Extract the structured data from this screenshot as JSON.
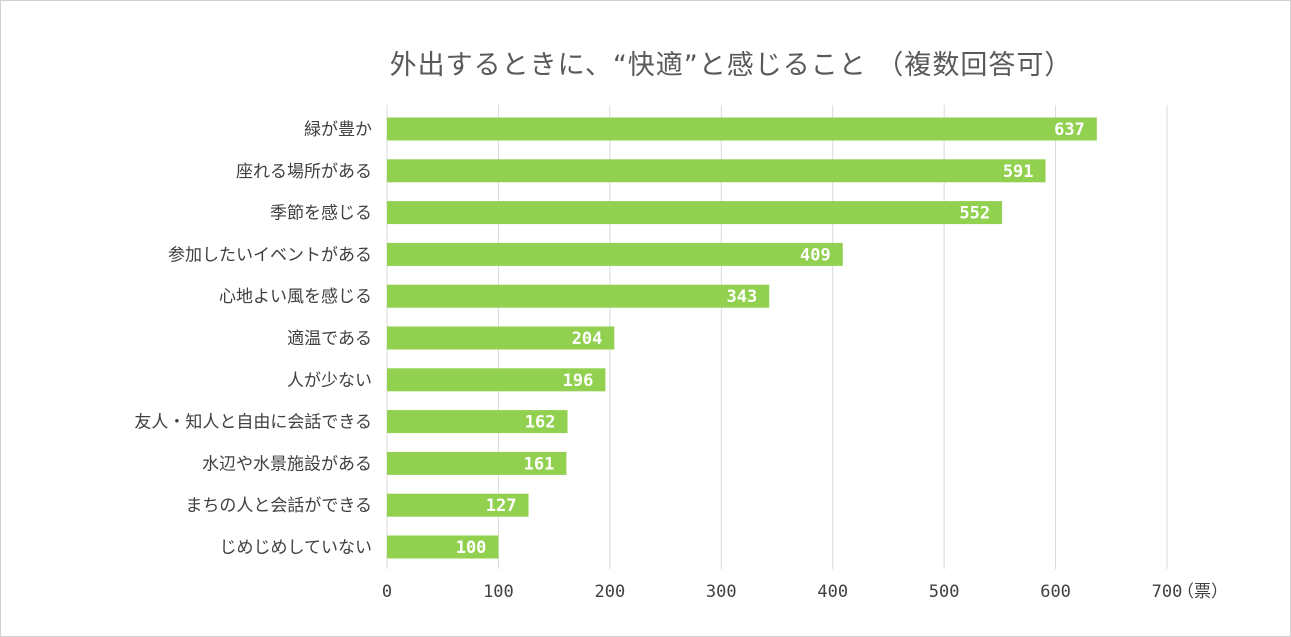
{
  "chart_data": {
    "type": "bar",
    "orientation": "horizontal",
    "title": "外出するときに、“快適”と感じること （複数回答可）",
    "unit": "（票）",
    "categories": [
      "緑が豊か",
      "座れる場所がある",
      "季節を感じる",
      "参加したいイベントがある",
      "心地よい風を感じる",
      "適温である",
      "人が少ない",
      "友人・知人と自由に会話できる",
      "水辺や水景施設がある",
      "まちの人と会話ができる",
      "じめじめしていない"
    ],
    "values": [
      637,
      591,
      552,
      409,
      343,
      204,
      196,
      162,
      161,
      127,
      100
    ],
    "xlim": [
      0,
      700
    ],
    "ticks": [
      "0",
      "100",
      "200",
      "300",
      "400",
      "500",
      "600",
      "700"
    ],
    "tick_values": [
      0,
      100,
      200,
      300,
      400,
      500,
      600,
      700
    ],
    "grid": true,
    "legend": "none",
    "bar_color": "#92d050",
    "grid_color": "#d9d9d9",
    "value_label_color": "#ffffff"
  }
}
